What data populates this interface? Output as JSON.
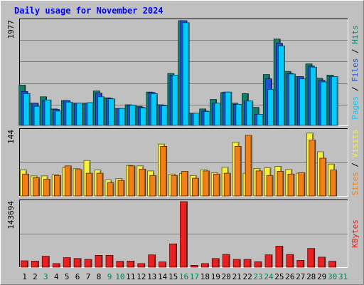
{
  "chart_data": {
    "type": "bar",
    "title": "Daily usage for November 2024",
    "categories": [
      "1",
      "2",
      "3",
      "4",
      "5",
      "6",
      "7",
      "8",
      "9",
      "10",
      "11",
      "12",
      "13",
      "14",
      "15",
      "16",
      "17",
      "18",
      "19",
      "20",
      "21",
      "22",
      "23",
      "24",
      "25",
      "26",
      "27",
      "28",
      "29",
      "30",
      "31"
    ],
    "weekend_days": [
      "3",
      "9",
      "10",
      "16",
      "17",
      "23",
      "24",
      "30",
      "31"
    ],
    "panels": [
      {
        "key": "top",
        "ymax_label": "1977",
        "ylim": [
          0,
          1977
        ],
        "axis_label_parts": [
          "Pages",
          " / ",
          "Files",
          " / ",
          "Hits"
        ],
        "series": [
          {
            "name": "Hits",
            "color": "#128069",
            "values": [
              760,
              420,
              540,
              310,
              470,
              420,
              420,
              650,
              520,
              320,
              390,
              360,
              630,
              390,
              980,
              1977,
              230,
              310,
              490,
              620,
              420,
              600,
              340,
              960,
              1630,
              1020,
              920,
              1160,
              890,
              950
            ]
          },
          {
            "name": "Files",
            "color": "#2050d8",
            "values": [
              640,
              420,
              470,
              300,
              470,
              420,
              420,
              610,
              510,
              320,
              380,
              340,
              620,
              380,
              950,
              1977,
              230,
              270,
              420,
              630,
              400,
              460,
              210,
              880,
              1550,
              980,
              920,
              1120,
              850,
              920
            ]
          },
          {
            "name": "Pages",
            "color": "#00ccff",
            "values": [
              600,
              360,
              480,
              270,
              440,
              420,
              430,
              540,
              500,
              320,
              380,
              330,
              600,
              370,
              950,
              1940,
              230,
              260,
              420,
              630,
              400,
              460,
              210,
              680,
              1500,
              970,
              880,
              1100,
              820,
              920
            ]
          }
        ]
      },
      {
        "key": "mid",
        "ymax_label": "144",
        "ylim": [
          0,
          144
        ],
        "axis_label_parts": [
          "Sites",
          " / ",
          "Visits"
        ],
        "series": [
          {
            "name": "Visits",
            "color": "#f8f040",
            "values": [
              57,
              44,
              44,
              47,
              62,
              60,
              78,
              57,
              35,
              38,
              67,
              66,
              55,
              114,
              48,
              49,
              45,
              57,
              51,
              63,
              118,
              50,
              60,
              62,
              65,
              58,
              50,
              138,
              97,
              70
            ]
          },
          {
            "name": "Sites",
            "color": "#f08018",
            "values": [
              48,
              40,
              37,
              45,
              66,
              58,
              50,
              50,
              29,
              34,
              66,
              59,
              45,
              109,
              45,
              54,
              39,
              55,
              48,
              50,
              109,
              133,
              55,
              45,
              54,
              48,
              51,
              123,
              83,
              57
            ]
          }
        ]
      },
      {
        "key": "bot",
        "ymax_label": "143694",
        "ylim": [
          0,
          143694
        ],
        "axis_label_parts": [
          "KBytes"
        ],
        "series": [
          {
            "name": "KBytes",
            "color": "#e82020",
            "values": [
              14000,
              13500,
              24000,
              8000,
              21000,
              19000,
              17000,
              26000,
              26000,
              13000,
              13500,
              8000,
              27000,
              11500,
              51000,
              143694,
              4000,
              8000,
              19000,
              28000,
              17000,
              17000,
              12000,
              27000,
              46000,
              28000,
              15000,
              41000,
              22000,
              13000
            ]
          }
        ]
      }
    ],
    "colors": {
      "background": "#c0c0c0",
      "plot_bg": "#c0c0c0",
      "grid": "#7c7c7c",
      "title": "#0000ff",
      "weekday_label": "#000000",
      "weekend_label": "#00805c",
      "axis_text": "#000000",
      "label_colors": {
        "Pages": "#00ccff",
        "Files": "#2050d8",
        "Hits": "#128069",
        "Sites": "#f08018",
        "Visits": "#f8f040",
        "KBytes": "#e82020",
        " / ": "#000000"
      }
    }
  }
}
